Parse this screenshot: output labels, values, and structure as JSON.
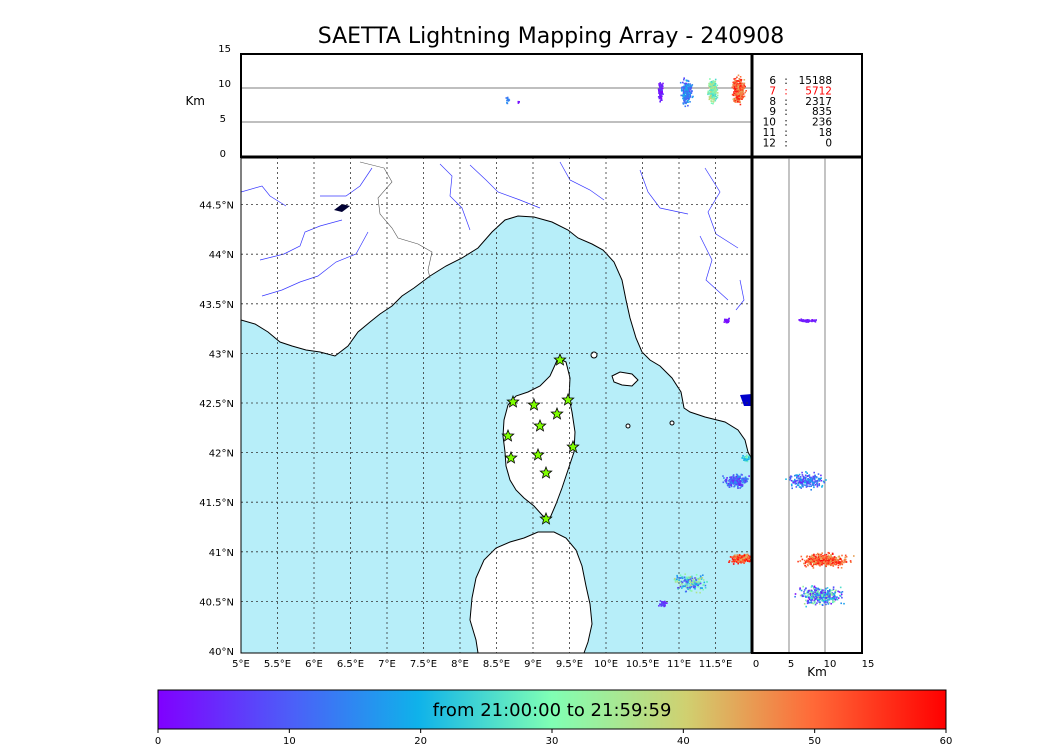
{
  "title": "SAETTA Lightning Mapping Array - 240908",
  "alt_panel": {
    "ylabel": "Km",
    "yticks": [
      "15",
      "10",
      "5",
      "0"
    ]
  },
  "side_panel": {
    "xlabel": "Km",
    "xticks": [
      "0",
      "5",
      "10",
      "15"
    ]
  },
  "map": {
    "lon_ticks": [
      "5°E",
      "5.5°E",
      "6°E",
      "6.5°E",
      "7°E",
      "7.5°E",
      "8°E",
      "8.5°E",
      "9°E",
      "9.5°E",
      "10°E",
      "10.5°E",
      "11°E",
      "11.5°E"
    ],
    "lat_ticks": [
      "44.5°N",
      "44°N",
      "43.5°N",
      "43°N",
      "42.5°N",
      "42°N",
      "41.5°N",
      "41°N",
      "40.5°N",
      "40°N"
    ],
    "colors": {
      "sea": "#b7eef9",
      "land": "#ffffff",
      "coast": "#000000",
      "river": "#3a3aff",
      "station": "#7fff00"
    },
    "stations": 12
  },
  "altitude_counts": [
    {
      "alt": "6",
      "sep": ":",
      "count": "15188",
      "highlight": false
    },
    {
      "alt": "7",
      "sep": ":",
      "count": "5712",
      "highlight": true
    },
    {
      "alt": "8",
      "sep": ":",
      "count": "2317",
      "highlight": false
    },
    {
      "alt": "9",
      "sep": ":",
      "count": "835",
      "highlight": false
    },
    {
      "alt": "10",
      "sep": ":",
      "count": "236",
      "highlight": false
    },
    {
      "alt": "11",
      "sep": ":",
      "count": "18",
      "highlight": false
    },
    {
      "alt": "12",
      "sep": ":",
      "count": "0",
      "highlight": false
    }
  ],
  "colorbar": {
    "label": "from 21:00:00 to 21:59:59",
    "ticks": [
      "0",
      "10",
      "20",
      "30",
      "40",
      "50",
      "60"
    ],
    "colormap": "rainbow"
  }
}
